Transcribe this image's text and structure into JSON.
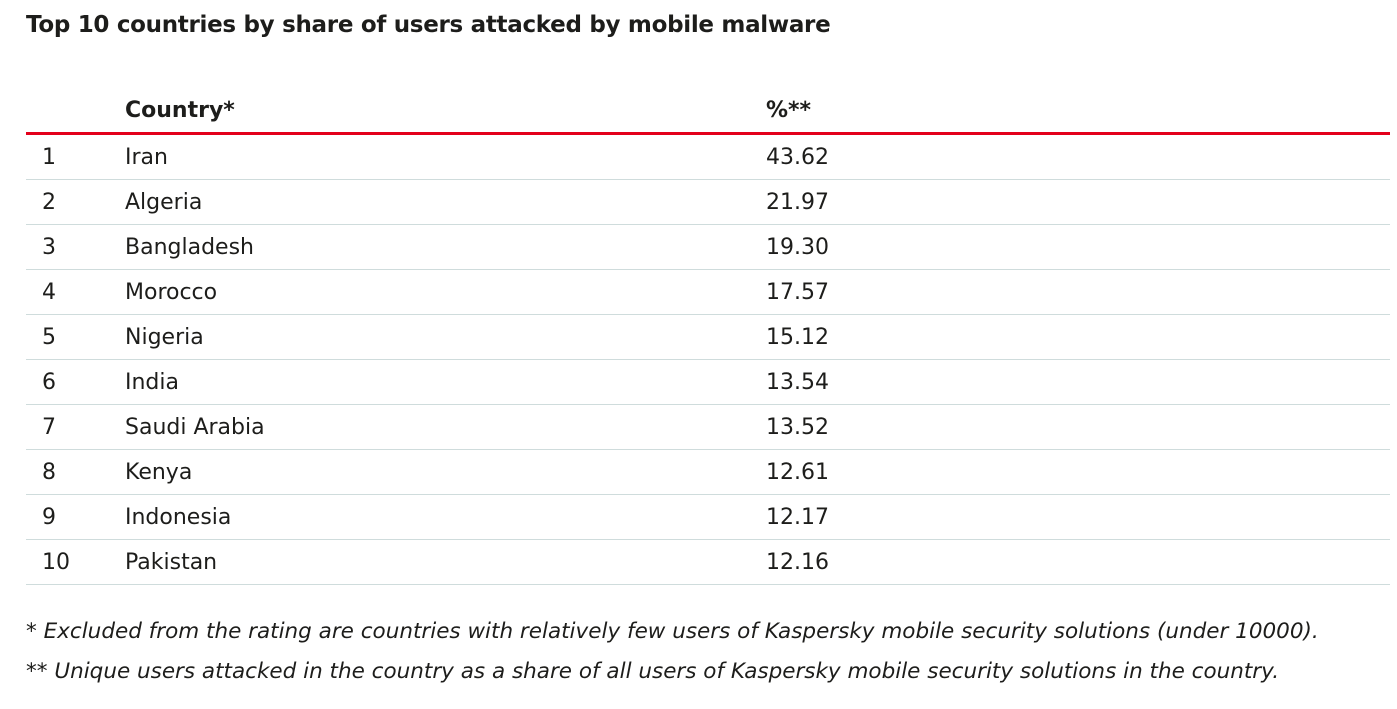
{
  "title": "Top 10 countries by share of users attacked by mobile malware",
  "table": {
    "headers": {
      "rank": "",
      "country": "Country*",
      "percent": "%**"
    },
    "rows": [
      {
        "rank": "1",
        "country": "Iran",
        "percent": "43.62"
      },
      {
        "rank": "2",
        "country": "Algeria",
        "percent": "21.97"
      },
      {
        "rank": "3",
        "country": "Bangladesh",
        "percent": "19.30"
      },
      {
        "rank": "4",
        "country": "Morocco",
        "percent": "17.57"
      },
      {
        "rank": "5",
        "country": "Nigeria",
        "percent": "15.12"
      },
      {
        "rank": "6",
        "country": "India",
        "percent": "13.54"
      },
      {
        "rank": "7",
        "country": "Saudi Arabia",
        "percent": "13.52"
      },
      {
        "rank": "8",
        "country": "Kenya",
        "percent": "12.61"
      },
      {
        "rank": "9",
        "country": "Indonesia",
        "percent": "12.17"
      },
      {
        "rank": "10",
        "country": "Pakistan",
        "percent": "12.16"
      }
    ]
  },
  "footnotes": [
    "* Excluded from the rating are countries with relatively few users of Kaspersky mobile security solutions (under 10000).",
    "** Unique users attacked in the country as a share of all users of Kaspersky mobile security solutions in the country."
  ],
  "colors": {
    "header_rule": "#e3001b",
    "row_rule": "#cfdcdc",
    "text": "#1d1d1b"
  }
}
